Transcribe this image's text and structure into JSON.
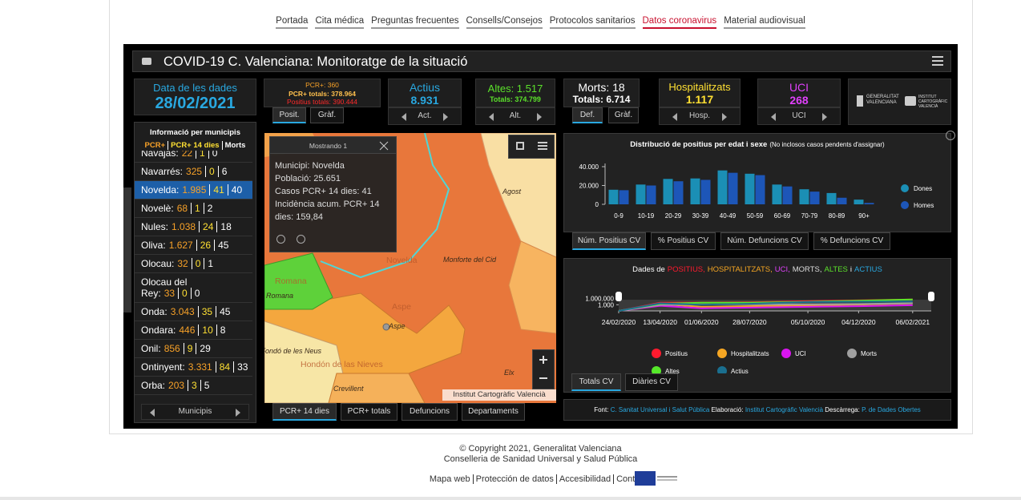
{
  "nav": {
    "items": [
      "Portada",
      "Cita médica",
      "Preguntas frecuentes",
      "Consells/Consejos",
      "Protocolos sanitarios",
      "Datos coronavirus",
      "Material audiovisual"
    ],
    "active": 5
  },
  "dashboard": {
    "title": "COVID-19 C. Valenciana: Monitoratge de la situació",
    "date_card": {
      "label": "Data de les dades",
      "value": "28/02/2021"
    },
    "pcr_card": {
      "pcr": "PCR+: 360",
      "pcr_totals": "PCR+ totals: 378.964",
      "positius_totals": "Positius totals: 390.444",
      "tabs": [
        "Posit.",
        "Gràf."
      ]
    },
    "actius_card": {
      "label": "Actius",
      "value": "8.931",
      "nav": "Act."
    },
    "altes_card": {
      "label": "Altes: 1.517",
      "value": "Totals: 374.799",
      "nav": "Alt."
    },
    "morts_card": {
      "label": "Morts: 18",
      "value": "Totals: 6.714",
      "tabs": [
        "Def.",
        "Gràf."
      ]
    },
    "hosp_card": {
      "label": "Hospitalitzats",
      "value": "1.117",
      "nav": "Hosp."
    },
    "uci_card": {
      "label": "UCI",
      "value": "268",
      "nav": "UCI"
    },
    "logos": [
      "GENERALITAT VALENCIANA",
      "INSTITUT CARTOGRÀFIC VALENCIÀ"
    ],
    "municipalities": {
      "title": "Informació per municipis",
      "legend": [
        "PCR+",
        "PCR+ 14 dies",
        "Morts"
      ],
      "rows": [
        {
          "name": "Navajas:",
          "pcr": "22",
          "pcr14": "1",
          "morts": "0"
        },
        {
          "name": "Navarrés:",
          "pcr": "325",
          "pcr14": "0",
          "morts": "6"
        },
        {
          "name": "Novelda:",
          "pcr": "1.985",
          "pcr14": "41",
          "morts": "40"
        },
        {
          "name": "Novelè:",
          "pcr": "68",
          "pcr14": "1",
          "morts": "2"
        },
        {
          "name": "Nules:",
          "pcr": "1.038",
          "pcr14": "24",
          "morts": "18"
        },
        {
          "name": "Oliva:",
          "pcr": "1.627",
          "pcr14": "26",
          "morts": "45"
        },
        {
          "name": "Olocau:",
          "pcr": "32",
          "pcr14": "0",
          "morts": "1"
        },
        {
          "name": "Olocau del Rey:",
          "pcr": "33",
          "pcr14": "0",
          "morts": "0"
        },
        {
          "name": "Onda:",
          "pcr": "3.043",
          "pcr14": "35",
          "morts": "45"
        },
        {
          "name": "Ondara:",
          "pcr": "446",
          "pcr14": "10",
          "morts": "8"
        },
        {
          "name": "Onil:",
          "pcr": "856",
          "pcr14": "9",
          "morts": "29"
        },
        {
          "name": "Ontinyent:",
          "pcr": "3.331",
          "pcr14": "84",
          "morts": "33"
        },
        {
          "name": "Orba:",
          "pcr": "203",
          "pcr14": "3",
          "morts": "5"
        }
      ],
      "selected": 2,
      "footer": "Municipis"
    },
    "map": {
      "popup": {
        "title": "Mostrando 1",
        "lines": [
          "Municipi: Novelda",
          "Població: 25.651",
          "Casos PCR+ 14 dies: 41",
          "Incidència acum. PCR+ 14 dies: 159,84"
        ]
      },
      "labels": [
        "Agost",
        "Novelda",
        "Monforte del Cid",
        "Aspe",
        "Aspe",
        "Romana",
        "Romana",
        "el Fondó de les Neus",
        "Hondón de las Nieves",
        "Crevillent",
        "Elx"
      ],
      "attribution": "Institut Cartogràfic Valencià",
      "tabs": [
        "PCR+ 14 dies",
        "PCR+ totals",
        "Defuncions",
        "Departaments"
      ]
    },
    "chart_tabs": [
      "Núm. Positius CV",
      "% Positius CV",
      "Núm. Defuncions CV",
      "% Defuncions CV"
    ],
    "line_tabs": [
      "Totals CV",
      "Diàries CV"
    ],
    "source": {
      "font_label": "Font:",
      "font": "C. Sanitat Universal i Salut Pública",
      "elab_label": "Elaboració:",
      "elab": "Institut Cartogràfic Valencià",
      "desc_label": "Descàrrega:",
      "desc": "P. de Dades Obertes"
    }
  },
  "chart_data": [
    {
      "type": "bar",
      "title": "Distribució de positius per edat i sexe",
      "subtitle": "(No inclosos casos pendents d'assignar)",
      "categories": [
        "0-9",
        "10-19",
        "20-29",
        "30-39",
        "40-49",
        "50-59",
        "60-69",
        "70-79",
        "80-89",
        "90+"
      ],
      "series": [
        {
          "name": "Dones",
          "color": "#1b8fb5",
          "values": [
            15500,
            21000,
            27000,
            27500,
            36000,
            32500,
            21000,
            16000,
            12000,
            5000
          ]
        },
        {
          "name": "Homes",
          "color": "#1d56b8",
          "values": [
            15000,
            20000,
            24500,
            26000,
            33500,
            31000,
            19000,
            13500,
            7000,
            1500
          ]
        }
      ],
      "ylim": [
        0,
        40000
      ],
      "yticks": [
        0,
        {
          "value": 20000,
          "label": "20.000"
        },
        {
          "value": 40000,
          "label": "40.000"
        }
      ],
      "grid": false
    },
    {
      "type": "line",
      "title_parts": [
        {
          "text": "Dades de",
          "color": "#ffffff"
        },
        {
          "text": "POSITIUS,",
          "color": "#ff1a2e"
        },
        {
          "text": "HOSPITALITZATS,",
          "color": "#f5a623"
        },
        {
          "text": "UCI,",
          "color": "#e040fb"
        },
        {
          "text": "MORTS,",
          "color": "#dddddd"
        },
        {
          "text": "ALTES",
          "color": "#5be12b"
        },
        {
          "text": "i",
          "color": "#ffffff"
        },
        {
          "text": "ACTIUS",
          "color": "#29a8e0"
        }
      ],
      "x": [
        "24/02/2020",
        "13/04/2020",
        "01/06/2020",
        "28/07/2020",
        "05/10/2020",
        "04/12/2020",
        "06/02/2021"
      ],
      "xlim": [
        "24/02/2020",
        "28/02/2021"
      ],
      "xticks": [
        "24/02/2020",
        "13/04/2020",
        "01/06/2020",
        "28/07/2020",
        "05/10/2020",
        "04/12/2020",
        "06/02/2021"
      ],
      "series": [
        {
          "name": "Positius",
          "color": "#ff1a2e",
          "values": [
            1,
            9000,
            11000,
            14000,
            50000,
            120000,
            370000
          ]
        },
        {
          "name": "Hospitalitzats",
          "color": "#f5a623",
          "values": [
            1,
            2000,
            100,
            200,
            500,
            1200,
            4500
          ]
        },
        {
          "name": "UCI",
          "color": "#d915f0",
          "values": [
            1,
            300,
            20,
            40,
            100,
            200,
            600
          ]
        },
        {
          "name": "Morts",
          "color": "#a0a0a0",
          "values": [
            1,
            800,
            1300,
            1400,
            1600,
            2200,
            5500
          ]
        },
        {
          "name": "Altes",
          "color": "#56e82a",
          "values": [
            1,
            3000,
            9000,
            10000,
            25000,
            90000,
            330000
          ]
        },
        {
          "name": "Actius",
          "color": "#1a6f8f",
          "values": [
            1,
            5000,
            1000,
            3000,
            20000,
            30000,
            40000
          ]
        }
      ],
      "log_scale": true,
      "ylim": [
        1,
        10000000
      ],
      "yticks": [
        {
          "value": 1000000,
          "label": "1.000.000"
        },
        {
          "value": 1000,
          "label": "1.000"
        }
      ]
    }
  ],
  "footer": {
    "copyright": "© Copyright 2021, Generalitat Valenciana",
    "department": "Conselleria de Sanidad Universal y Salud Pública",
    "links": [
      "Mapa web",
      "Protección de datos",
      "Accesibilidad",
      "Contacto"
    ]
  }
}
